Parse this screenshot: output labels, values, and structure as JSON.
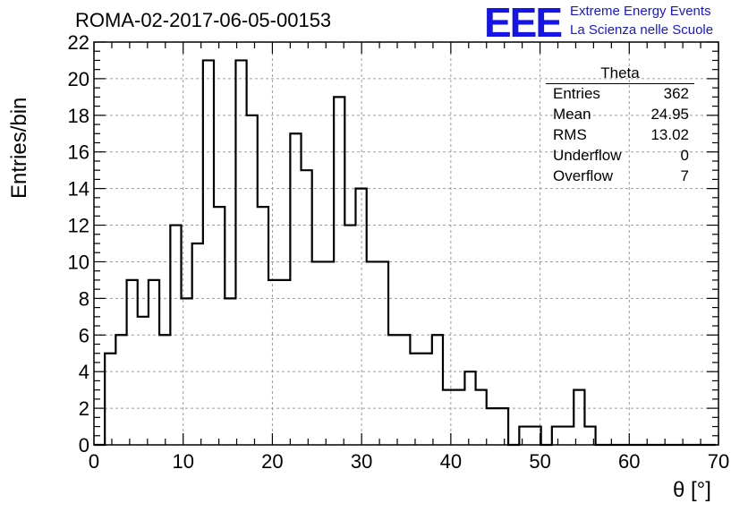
{
  "title": "ROMA-02-2017-06-05-00153",
  "logo": {
    "mark": "EEE",
    "line1": "Extreme Energy Events",
    "line2": "La Scienza nelle Scuole",
    "color": "#1515e6"
  },
  "stats_box": {
    "name": "Theta",
    "rows": [
      {
        "label": "Entries",
        "value": "362"
      },
      {
        "label": "Mean",
        "value": "24.95"
      },
      {
        "label": "RMS",
        "value": "13.02"
      },
      {
        "label": "Underflow",
        "value": "0"
      },
      {
        "label": "Overflow",
        "value": "7"
      }
    ]
  },
  "chart_data": {
    "type": "bar",
    "title": "ROMA-02-2017-06-05-00153",
    "xlabel": "θ [°]",
    "ylabel": "Entries/bin",
    "xlim": [
      0,
      70
    ],
    "ylim": [
      0,
      22
    ],
    "x_ticks": [
      0,
      10,
      20,
      30,
      40,
      50,
      60,
      70
    ],
    "y_ticks": [
      0,
      2,
      4,
      6,
      8,
      10,
      12,
      14,
      16,
      18,
      20,
      22
    ],
    "grid": true,
    "bin_edges": [
      0,
      1.22,
      2.44,
      3.67,
      4.89,
      6.11,
      7.33,
      8.56,
      9.78,
      11.0,
      12.22,
      13.44,
      14.67,
      15.89,
      17.11,
      18.33,
      19.56,
      20.78,
      22.0,
      23.22,
      24.44,
      25.67,
      26.89,
      28.11,
      29.33,
      30.56,
      31.78,
      33.0,
      34.22,
      35.44,
      36.67,
      37.89,
      39.11,
      40.33,
      41.56,
      42.78,
      44.0,
      45.22,
      46.44,
      47.67,
      48.89,
      50.11,
      51.33,
      52.56,
      53.78,
      55.0,
      56.22,
      57.44,
      58.67,
      59.89,
      61.11,
      62.33,
      63.56,
      64.78,
      66.0,
      67.22,
      68.44,
      69.67
    ],
    "values": [
      0,
      5,
      6,
      9,
      7,
      9,
      6,
      12,
      8,
      11,
      21,
      13,
      8,
      21,
      18,
      13,
      9,
      9,
      17,
      15,
      10,
      10,
      19,
      12,
      14,
      10,
      10,
      6,
      6,
      5,
      5,
      6,
      3,
      3,
      4,
      3,
      2,
      2,
      0,
      1,
      1,
      0,
      1,
      1,
      3,
      1,
      0,
      0,
      0,
      0,
      0,
      0,
      0,
      0,
      0,
      0,
      0
    ],
    "line_color": "#000000"
  }
}
